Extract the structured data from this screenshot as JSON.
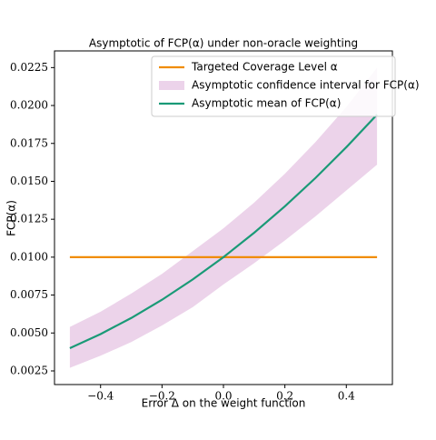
{
  "chart_data": {
    "type": "line",
    "title": "Asymptotic of FCP(α) under non-oracle weighting",
    "x_label": "Error Δ on the weight function",
    "y_label": "FCP(α)",
    "x": [
      -0.5,
      -0.4,
      -0.3,
      -0.2,
      -0.1,
      0,
      0.1,
      0.2,
      0.3,
      0.4,
      0.5
    ],
    "series": [
      {
        "name": "Targeted Coverage Level α",
        "color": "#f08c00",
        "x": [
          -0.5,
          0.5
        ],
        "values": [
          0.01,
          0.01
        ]
      },
      {
        "name": "Asymptotic confidence interval for FCP(α)",
        "color": "#ecd3ea",
        "kind": "band",
        "lower": [
          0.0027,
          0.0035,
          0.0044,
          0.0055,
          0.0067,
          0.0082,
          0.0096,
          0.0111,
          0.0127,
          0.0144,
          0.0161
        ],
        "upper": [
          0.0054,
          0.0064,
          0.0076,
          0.0089,
          0.0104,
          0.0119,
          0.0136,
          0.0155,
          0.0176,
          0.0199,
          0.0225
        ]
      },
      {
        "name": "Asymptotic mean of FCP(α)",
        "color": "#1a9a77",
        "values": [
          0.004,
          0.00493,
          0.00599,
          0.00719,
          0.00853,
          0.01,
          0.01161,
          0.01335,
          0.01523,
          0.01725,
          0.0194
        ]
      }
    ],
    "xlim": [
      -0.55,
      0.55
    ],
    "ylim": [
      0.0016,
      0.0236
    ],
    "xticks": [
      {
        "value": -0.4,
        "label": "−0.4"
      },
      {
        "value": -0.2,
        "label": "−0.2"
      },
      {
        "value": 0,
        "label": "0.0"
      },
      0.2,
      0.4
    ],
    "yticks": [
      0.0025,
      {
        "value": 0.005,
        "label": "0.0050"
      },
      0.0075,
      {
        "value": 0.01,
        "label": "0.0100"
      },
      0.0125,
      {
        "value": 0.015,
        "label": "0.0150"
      },
      0.0175,
      {
        "value": 0.02,
        "label": "0.0200"
      },
      0.0225
    ],
    "legend": "upper center",
    "grid": false
  }
}
